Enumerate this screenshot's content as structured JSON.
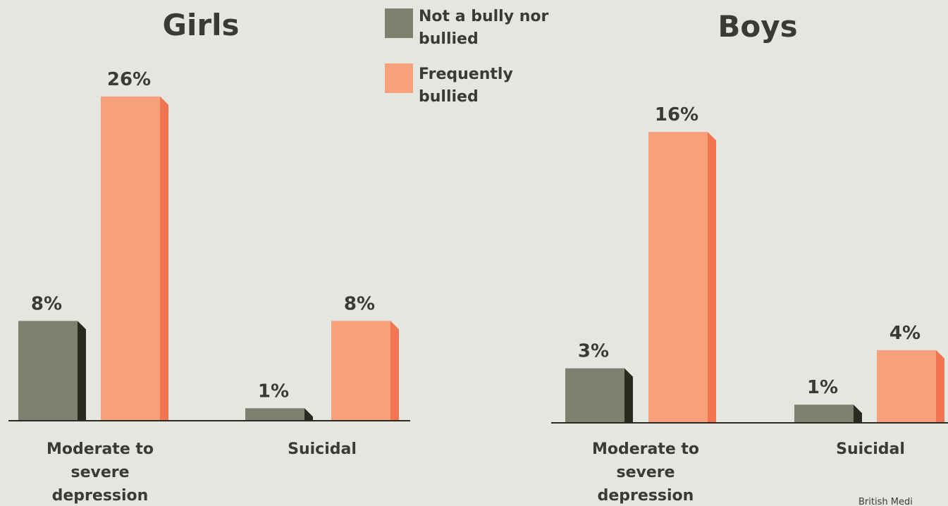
{
  "chart_data": [
    {
      "type": "bar",
      "title": "Girls",
      "categories": [
        [
          "Moderate to",
          "severe",
          "depression"
        ],
        [
          "Suicidal"
        ]
      ],
      "series": [
        {
          "name": "Not a bully nor bullied",
          "values": [
            8,
            1
          ]
        },
        {
          "name": "Frequently bullied",
          "values": [
            26,
            8
          ]
        }
      ],
      "value_labels": [
        [
          "8%",
          "1%"
        ],
        [
          "26%",
          "8%"
        ]
      ],
      "xlabel": "",
      "ylabel": ""
    },
    {
      "type": "bar",
      "title": "Boys",
      "categories": [
        [
          "Moderate to",
          "severe",
          "depression"
        ],
        [
          "Suicidal"
        ]
      ],
      "series": [
        {
          "name": "Not a bully nor bullied",
          "values": [
            3,
            1
          ]
        },
        {
          "name": "Frequently bullied",
          "values": [
            16,
            4
          ]
        }
      ],
      "value_labels": [
        [
          "3%",
          "1%"
        ],
        [
          "16%",
          "4%"
        ]
      ],
      "xlabel": "",
      "ylabel": ""
    }
  ],
  "legend": {
    "placement": "top-center",
    "items": [
      {
        "lines": [
          "Not a bully nor",
          "bullied"
        ],
        "color": "#7f8170",
        "side_color": "#2b2a1f"
      },
      {
        "lines": [
          "Frequently",
          "bullied"
        ],
        "color": "#f8a07c",
        "side_color": "#f07550"
      }
    ]
  },
  "credit": "British Medi"
}
